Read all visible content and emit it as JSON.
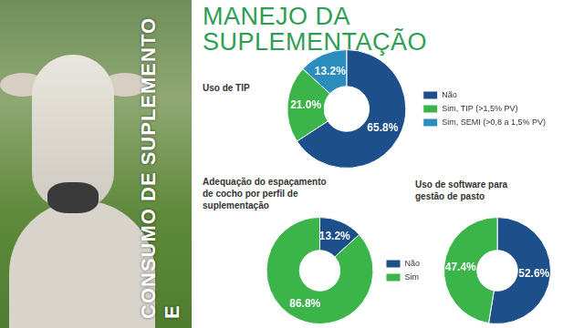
{
  "title": "MANEJO DA SUPLEMENTAÇÃO",
  "side_text": "CONSUMO DE SUPLEMENTO E",
  "chart_data": [
    {
      "type": "doughnut",
      "title": "Uso de TIP",
      "categories": [
        "Não",
        "Sim, TIP (>1,5% PV)",
        "Sim, SEMI (>0,8 a 1,5% PV)"
      ],
      "values": [
        65.8,
        21.0,
        13.2
      ],
      "value_labels": [
        "65.8%",
        "21.0%",
        "13.2%"
      ],
      "colors": [
        "#1d4f8a",
        "#3bb54a",
        "#2a8dbd"
      ],
      "legend": "right",
      "data_labels": true
    },
    {
      "type": "doughnut",
      "title": "Adequação do espaçamento de cocho por perfil de suplementação",
      "categories": [
        "Não",
        "Sim"
      ],
      "values": [
        13.2,
        86.8
      ],
      "value_labels": [
        "13.2%",
        "86.8%"
      ],
      "colors": [
        "#1d4f8a",
        "#3bb54a"
      ],
      "legend": "right",
      "data_labels": true
    },
    {
      "type": "doughnut",
      "title": "Uso de software para gestão de pasto",
      "categories": [
        "Não",
        "Sim"
      ],
      "values": [
        52.6,
        47.4
      ],
      "value_labels": [
        "52.6%",
        "47.4%"
      ],
      "colors": [
        "#1d4f8a",
        "#3bb54a"
      ],
      "data_labels": true
    }
  ]
}
